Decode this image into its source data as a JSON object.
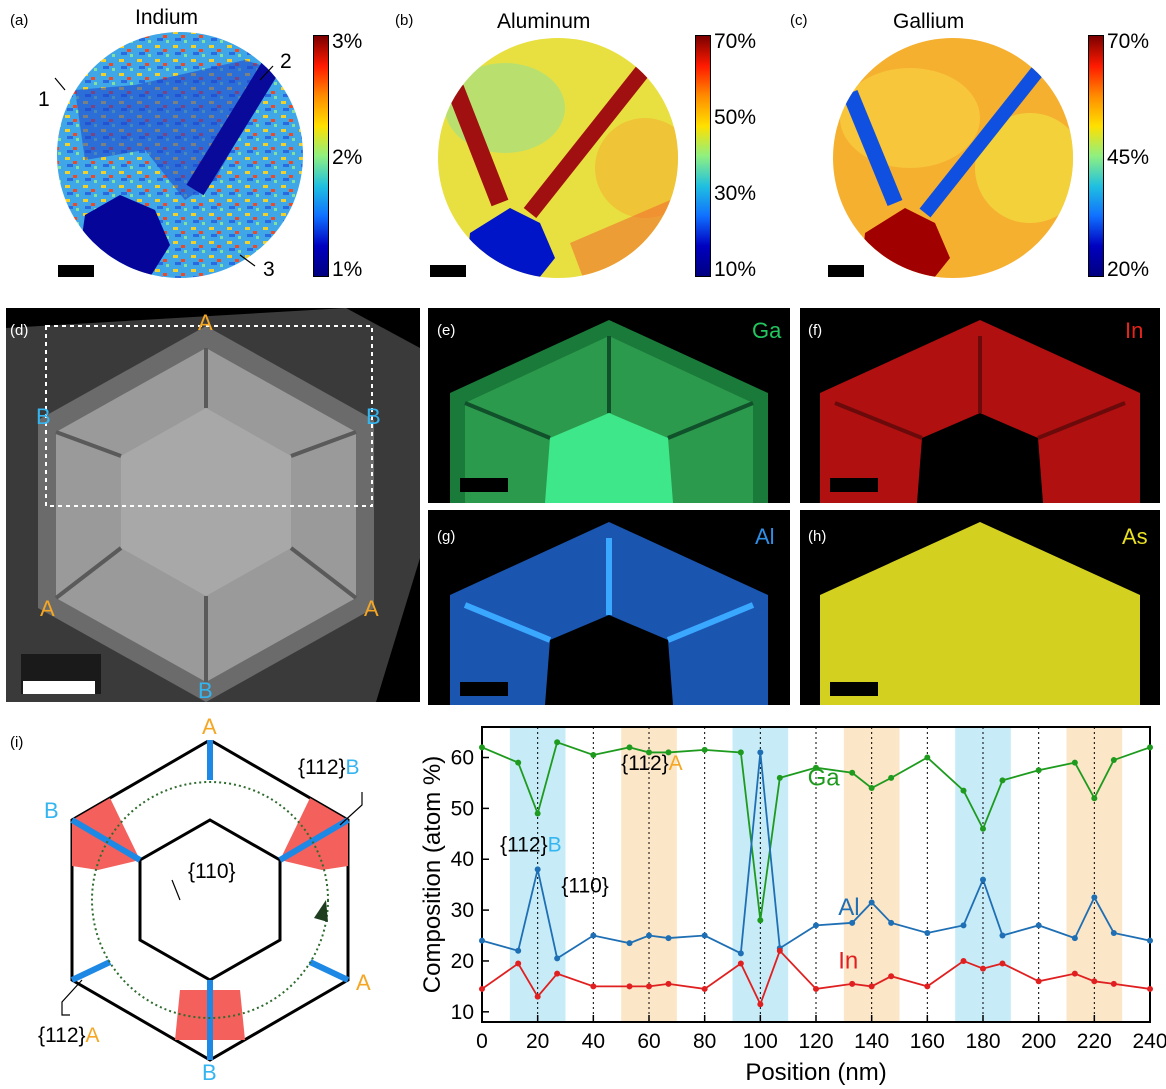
{
  "panels": {
    "a": {
      "label": "(a)",
      "title": "Indium",
      "ticks": [
        "3%",
        "2%",
        "1%"
      ],
      "markers": [
        "1",
        "2",
        "3"
      ]
    },
    "b": {
      "label": "(b)",
      "title": "Aluminum",
      "ticks": [
        "70%",
        "50%",
        "30%",
        "10%"
      ]
    },
    "c": {
      "label": "(c)",
      "title": "Gallium",
      "ticks": [
        "70%",
        "45%",
        "20%"
      ]
    },
    "d": {
      "label": "(d)",
      "corner_A": "A",
      "corner_B": "B"
    },
    "e": {
      "label": "(e)",
      "element": "Ga",
      "color": "#22c55e"
    },
    "f": {
      "label": "(f)",
      "element": "In",
      "color": "#e5251c"
    },
    "g": {
      "label": "(g)",
      "element": "Al",
      "color": "#2f8fe6"
    },
    "h": {
      "label": "(h)",
      "element": "As",
      "color": "#e8e020"
    },
    "i": {
      "label": "(i)",
      "corner_A": "A",
      "corner_B": "B",
      "facet_112B": "{112}",
      "facet_112B_suffix": "B",
      "facet_110": "{110}",
      "facet_112A": "{112}",
      "facet_112A_suffix": "A"
    }
  },
  "chart_data": {
    "type": "line",
    "xlabel": "Position (nm)",
    "ylabel": "Composition (atom %)",
    "xlim": [
      0,
      240
    ],
    "ylim": [
      8,
      66
    ],
    "xticks": [
      0,
      20,
      40,
      60,
      80,
      100,
      120,
      140,
      160,
      180,
      200,
      220,
      240
    ],
    "yticks": [
      10,
      20,
      30,
      40,
      50,
      60
    ],
    "vertical_dotted_lines": [
      20,
      40,
      60,
      80,
      100,
      120,
      140,
      160,
      180,
      200,
      220
    ],
    "shaded_bands": [
      {
        "from": 10,
        "to": 30,
        "facet": "B"
      },
      {
        "from": 50,
        "to": 70,
        "facet": "A"
      },
      {
        "from": 90,
        "to": 110,
        "facet": "B"
      },
      {
        "from": 130,
        "to": 150,
        "facet": "A"
      },
      {
        "from": 170,
        "to": 190,
        "facet": "B"
      },
      {
        "from": 210,
        "to": 230,
        "facet": "A"
      }
    ],
    "band_colors": {
      "A": "#fbe6c8",
      "B": "#c7ecf8"
    },
    "annotations": [
      {
        "text": "{112}",
        "suffix": "A",
        "x": 50,
        "y": 57.5,
        "suffix_color": "#f5a623"
      },
      {
        "text": "{112}",
        "suffix": "B",
        "x": 6.5,
        "y": 41.5,
        "suffix_color": "#35b5f0"
      },
      {
        "text": "{110}",
        "suffix": "",
        "x": 28.5,
        "y": 33.5,
        "suffix_color": "#000000"
      }
    ],
    "series": [
      {
        "name": "Ga",
        "color": "#1e9b1e",
        "label_x": 117,
        "label_y": 54.5,
        "x": [
          0,
          13,
          20,
          27,
          40,
          53,
          60,
          67,
          80,
          93,
          100,
          107,
          120,
          133,
          140,
          147,
          160,
          173,
          180,
          187,
          200,
          213,
          220,
          227,
          240
        ],
        "y": [
          62,
          59,
          49,
          63,
          60.5,
          62,
          61,
          61,
          61.5,
          61,
          28,
          56,
          58,
          57,
          54,
          56,
          60,
          53.5,
          46,
          55.5,
          57.5,
          59,
          52,
          59.5,
          62
        ]
      },
      {
        "name": "Al",
        "color": "#1f6fb4",
        "label_x": 128,
        "label_y": 29,
        "x": [
          0,
          13,
          20,
          27,
          40,
          53,
          60,
          67,
          80,
          93,
          100,
          107,
          120,
          133,
          140,
          147,
          160,
          173,
          180,
          187,
          200,
          213,
          220,
          227,
          240
        ],
        "y": [
          24,
          22,
          38,
          20.5,
          25,
          23.5,
          25,
          24.5,
          25,
          21.5,
          61,
          22.5,
          27,
          27.5,
          31.5,
          27.5,
          25.5,
          27,
          36,
          25,
          27,
          24.5,
          32.5,
          25.5,
          24
        ]
      },
      {
        "name": "In",
        "color": "#e02020",
        "label_x": 128,
        "label_y": 18.5,
        "x": [
          0,
          13,
          20,
          27,
          40,
          53,
          60,
          67,
          80,
          93,
          100,
          107,
          120,
          133,
          140,
          147,
          160,
          173,
          180,
          187,
          200,
          213,
          220,
          227,
          240
        ],
        "y": [
          14.5,
          19.5,
          13,
          17.5,
          15,
          15,
          15,
          15.5,
          14.5,
          19.5,
          11.5,
          22,
          14.5,
          15.5,
          15,
          17,
          15,
          20,
          18.5,
          19.5,
          16,
          17.5,
          16,
          15.5,
          14.5
        ]
      }
    ]
  }
}
